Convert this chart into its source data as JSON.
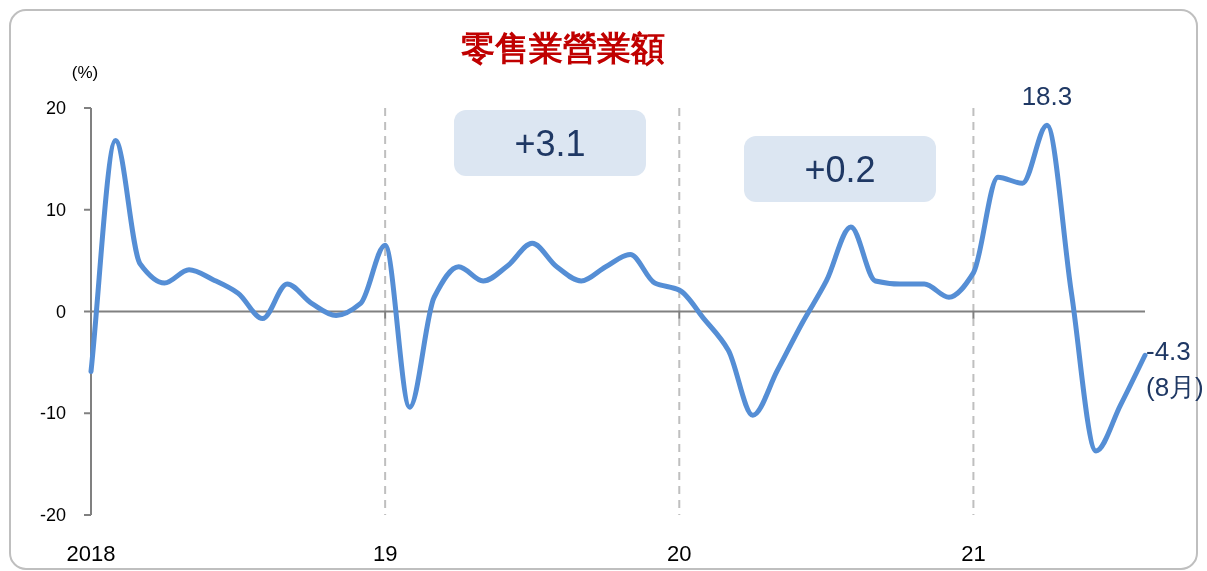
{
  "chart_data": {
    "type": "line",
    "title": "零售業營業額",
    "ylabel": "(%)",
    "x": [
      "2018-01",
      "2018-02",
      "2018-03",
      "2018-04",
      "2018-05",
      "2018-06",
      "2018-07",
      "2018-08",
      "2018-09",
      "2018-10",
      "2018-11",
      "2018-12",
      "2019-01",
      "2019-02",
      "2019-03",
      "2019-04",
      "2019-05",
      "2019-06",
      "2019-07",
      "2019-08",
      "2019-09",
      "2019-10",
      "2019-11",
      "2019-12",
      "2020-01",
      "2020-02",
      "2020-03",
      "2020-04",
      "2020-05",
      "2020-06",
      "2020-07",
      "2020-08",
      "2020-09",
      "2020-10",
      "2020-11",
      "2020-12",
      "2021-01",
      "2021-02",
      "2021-03",
      "2021-04",
      "2021-05",
      "2021-06",
      "2021-07",
      "2021-08"
    ],
    "series": [
      {
        "color": "#558ed5",
        "values": [
          -5.9,
          16.8,
          4.7,
          2.8,
          4.1,
          3.1,
          1.8,
          -0.7,
          2.7,
          0.8,
          -0.4,
          0.8,
          6.5,
          -9.4,
          1.4,
          4.4,
          3.0,
          4.5,
          6.7,
          4.4,
          3.0,
          4.4,
          5.6,
          2.8,
          2.1,
          -0.7,
          -3.8,
          -10.2,
          -5.8,
          -1.2,
          3.0,
          8.3,
          3.0,
          2.7,
          2.7,
          1.4,
          3.8,
          13.2,
          12.6,
          18.3,
          1.8,
          -13.7,
          -9.2,
          -4.3
        ]
      }
    ],
    "xlim": [
      "2018-01",
      "2021-08"
    ],
    "xticks": [
      {
        "value": "2018-01",
        "label": "2018"
      },
      {
        "value": "2019-01",
        "label": "19"
      },
      {
        "value": "2020-01",
        "label": "20"
      },
      {
        "value": "2021-01",
        "label": "21"
      }
    ],
    "ylim": [
      -20,
      20
    ],
    "yticks": [
      -20,
      -10,
      0,
      10,
      20
    ],
    "ref_lines": [
      {
        "axis": "x",
        "value": "2019-01",
        "color": "#bfbfbf",
        "line_style": "dashed"
      },
      {
        "axis": "x",
        "value": "2020-01",
        "color": "#bfbfbf",
        "line_style": "dashed"
      },
      {
        "axis": "x",
        "value": "2021-01",
        "color": "#bfbfbf",
        "line_style": "dashed"
      }
    ],
    "annotations": [
      "+3.1",
      "+0.2",
      {
        "text": "18.3",
        "x": "2021-04",
        "y": 18.3
      },
      {
        "text": "-4.3\n(8月)",
        "x": "2021-08",
        "y": -4.3
      }
    ],
    "grid": false,
    "marker": "none",
    "line_style": "solid"
  }
}
